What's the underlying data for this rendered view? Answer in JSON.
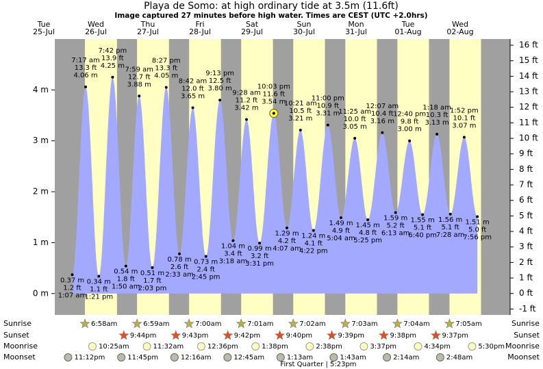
{
  "chart_data": {
    "type": "tide",
    "title": "Playa de Somo: at high  ordinary tide at 3.5m (11.6ft)",
    "subtitle": "Image captured 27 minutes before high water. Times are CEST (UTC +2.0hrs)",
    "days": [
      {
        "name": "Tue",
        "date": "25-Jul"
      },
      {
        "name": "Wed",
        "date": "26-Jul"
      },
      {
        "name": "Thu",
        "date": "27-Jul"
      },
      {
        "name": "Fri",
        "date": "28-Jul"
      },
      {
        "name": "Sat",
        "date": "29-Jul"
      },
      {
        "name": "Sun",
        "date": "30-Jul"
      },
      {
        "name": "Mon",
        "date": "31-Jul"
      },
      {
        "name": "Tue",
        "date": "01-Aug"
      },
      {
        "name": "Wed",
        "date": "02-Aug"
      }
    ],
    "x": [
      "1:07 am",
      "7:17 am",
      "1:21 pm",
      "7:42 pm",
      "1:50 am",
      "7:59 am",
      "2:03 pm",
      "8:27 pm",
      "2:33 am",
      "8:42 am",
      "2:45 pm",
      "9:13 pm",
      "3:18 am",
      "9:28 am",
      "3:31 pm",
      "10:03 pm",
      "4:07 am",
      "10:21 am",
      "4:22 pm",
      "11:00 pm",
      "5:04 am",
      "11:25 am",
      "5:25 pm",
      "12:07 am",
      "6:13 am",
      "12:40 pm",
      "6:40 pm",
      "1:18 am",
      "7:28 am",
      "1:52 pm",
      "7:56 pm"
    ],
    "values": [
      0.37,
      4.06,
      0.34,
      4.25,
      0.54,
      3.88,
      0.51,
      4.05,
      0.78,
      3.65,
      0.73,
      3.8,
      1.04,
      3.42,
      0.99,
      3.54,
      1.29,
      3.21,
      1.24,
      3.31,
      1.49,
      3.05,
      1.45,
      3.16,
      1.59,
      3.0,
      1.55,
      3.13,
      1.56,
      3.07,
      1.51
    ],
    "value_labels": [
      "0.37 m",
      "4.06 m",
      "0.34 m",
      "4.25 m",
      "0.54 m",
      "3.88 m",
      "0.51 m",
      "4.05 m",
      "0.78 m",
      "3.65 m",
      "0.73 m",
      "3.80 m",
      "1.04 m",
      "3.42 m",
      "0.99 m",
      "3.54 m",
      "1.29 m",
      "3.21 m",
      "1.24 m",
      "3.31 m",
      "1.49 m",
      "3.05 m",
      "1.45 m",
      "3.16 m",
      "1.59 m",
      "3.00 m",
      "1.55 m",
      "3.13 m",
      "1.56 m",
      "3.07 m",
      "1.51 m"
    ],
    "ft_labels": [
      "1.2 ft",
      "13.3 ft",
      "1.1 ft",
      "13.9 ft",
      "1.8 ft",
      "12.7 ft",
      "1.7 ft",
      "13.3 ft",
      "2.6 ft",
      "12.0 ft",
      "2.4 ft",
      "12.5 ft",
      "3.4 ft",
      "11.2 ft",
      "3.2 ft",
      "11.6 ft",
      "4.2 ft",
      "10.5 ft",
      "4.1 ft",
      "10.9 ft",
      "4.9 ft",
      "10.0 ft",
      "4.8 ft",
      "10.4 ft",
      "5.2 ft",
      "9.8 ft",
      "5.1 ft",
      "10.3 ft",
      "5.1 ft",
      "10.1 ft",
      "5.0 ft"
    ],
    "highlight_index": 15,
    "color": "#a3a9ff",
    "day_color": "#ffffc4",
    "night_color": "#a0a0a0",
    "ylim": [
      -0.42,
      5.0
    ],
    "yticks": [
      {
        "value": 0,
        "label": "0 m"
      },
      {
        "value": 1,
        "label": "1 m"
      },
      {
        "value": 2,
        "label": "2 m"
      },
      {
        "value": 3,
        "label": "3 m"
      },
      {
        "value": 4,
        "label": "4 m"
      }
    ],
    "y2lim": [
      -1.38,
      16.4
    ],
    "y2ticks": [
      {
        "value": -1,
        "label": "-1 ft"
      },
      {
        "value": 0,
        "label": "0 ft"
      },
      {
        "value": 1,
        "label": "1 ft"
      },
      {
        "value": 2,
        "label": "2 ft"
      },
      {
        "value": 3,
        "label": "3 ft"
      },
      {
        "value": 4,
        "label": "4 ft"
      },
      {
        "value": 5,
        "label": "5 ft"
      },
      {
        "value": 6,
        "label": "6 ft"
      },
      {
        "value": 7,
        "label": "7 ft"
      },
      {
        "value": 8,
        "label": "8 ft"
      },
      {
        "value": 9,
        "label": "9 ft"
      },
      {
        "value": 10,
        "label": "10 ft"
      },
      {
        "value": 11,
        "label": "11 ft"
      },
      {
        "value": 12,
        "label": "12 ft"
      },
      {
        "value": 13,
        "label": "13 ft"
      },
      {
        "value": 14,
        "label": "14 ft"
      },
      {
        "value": 15,
        "label": "15 ft"
      },
      {
        "value": 16,
        "label": "16 ft"
      }
    ],
    "rows": [
      {
        "label": "Sunrise",
        "kind": "sunrise",
        "times": [
          "6:58am",
          "6:59am",
          "7:00am",
          "7:01am",
          "7:02am",
          "7:03am",
          "7:04am",
          "7:05am"
        ]
      },
      {
        "label": "Sunset",
        "kind": "sunset",
        "times": [
          "9:44pm",
          "9:43pm",
          "9:42pm",
          "9:40pm",
          "9:39pm",
          "9:38pm",
          "9:37pm"
        ]
      },
      {
        "label": "Moonrise",
        "kind": "moonrise",
        "times": [
          "10:25am",
          "11:32am",
          "12:36pm",
          "1:38pm",
          "2:38pm",
          "3:37pm",
          "4:34pm",
          "5:30pm"
        ]
      },
      {
        "label": "Moonset",
        "kind": "moonset",
        "times": [
          "11:12pm",
          "11:45pm",
          "12:16am",
          "12:45am",
          "1:13am",
          "1:43am",
          "2:14am",
          "2:48am"
        ]
      }
    ],
    "moon_phase": "First Quarter | 5:23pm"
  }
}
